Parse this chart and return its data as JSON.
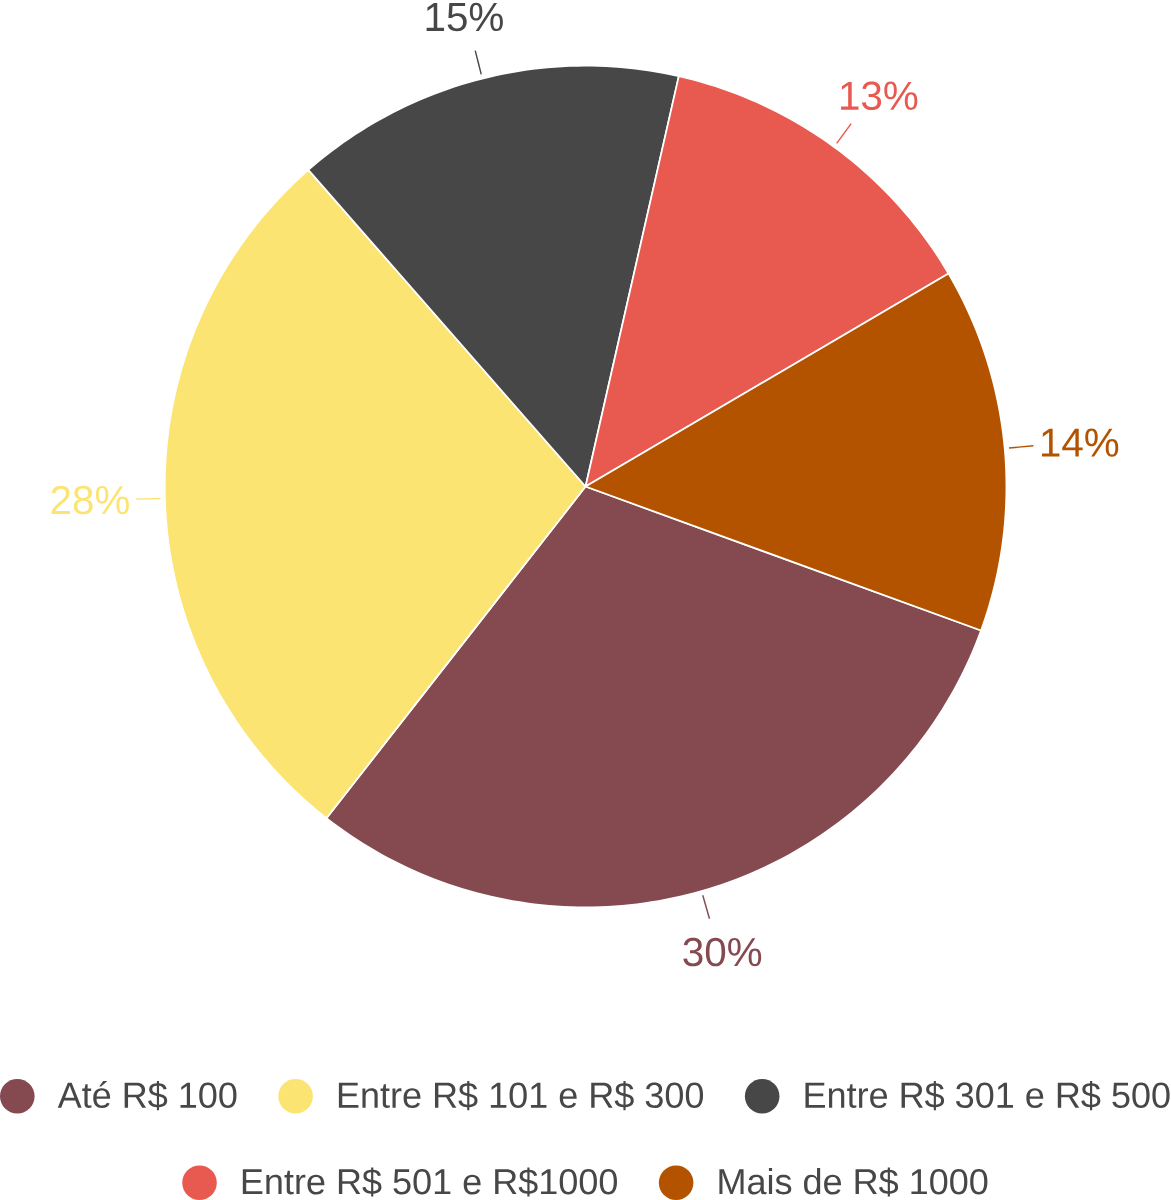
{
  "chart_data": {
    "type": "pie",
    "categories": [
      "Até R$ 100",
      "Entre R$ 101 e R$ 300",
      "Entre R$ 301 e R$ 500",
      "Entre R$ 501 e R$1000",
      "Mais de R$ 1000"
    ],
    "values": [
      30,
      28,
      15,
      13,
      14
    ],
    "value_labels": [
      "30%",
      "28%",
      "15%",
      "13%",
      "14%"
    ],
    "colors": [
      "#854a50",
      "#fce473",
      "#474747",
      "#e85a4f",
      "#b35300"
    ],
    "legend": "bottom"
  }
}
